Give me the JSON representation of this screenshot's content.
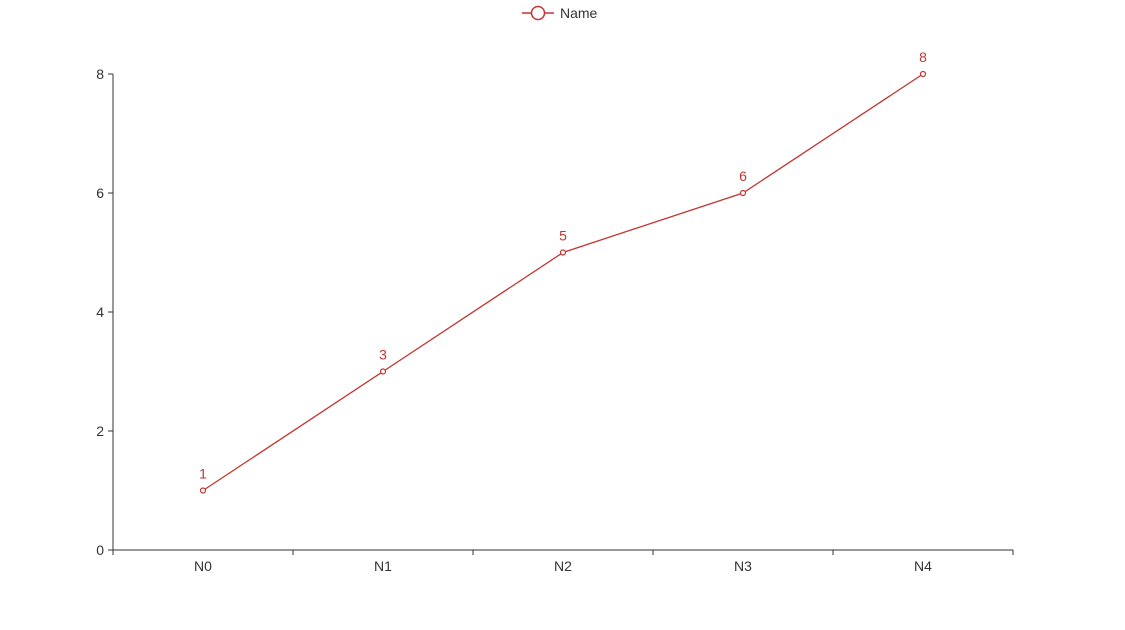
{
  "chart_data": {
    "type": "line",
    "categories": [
      "N0",
      "N1",
      "N2",
      "N3",
      "N4"
    ],
    "series": [
      {
        "name": "Name",
        "values": [
          1,
          3,
          5,
          6,
          8
        ],
        "color": "#c23531"
      }
    ],
    "ylim": [
      0,
      8
    ],
    "yticks": [
      0,
      2,
      4,
      6,
      8
    ],
    "grid": false,
    "legend_position": "top-center",
    "data_labels": true
  }
}
